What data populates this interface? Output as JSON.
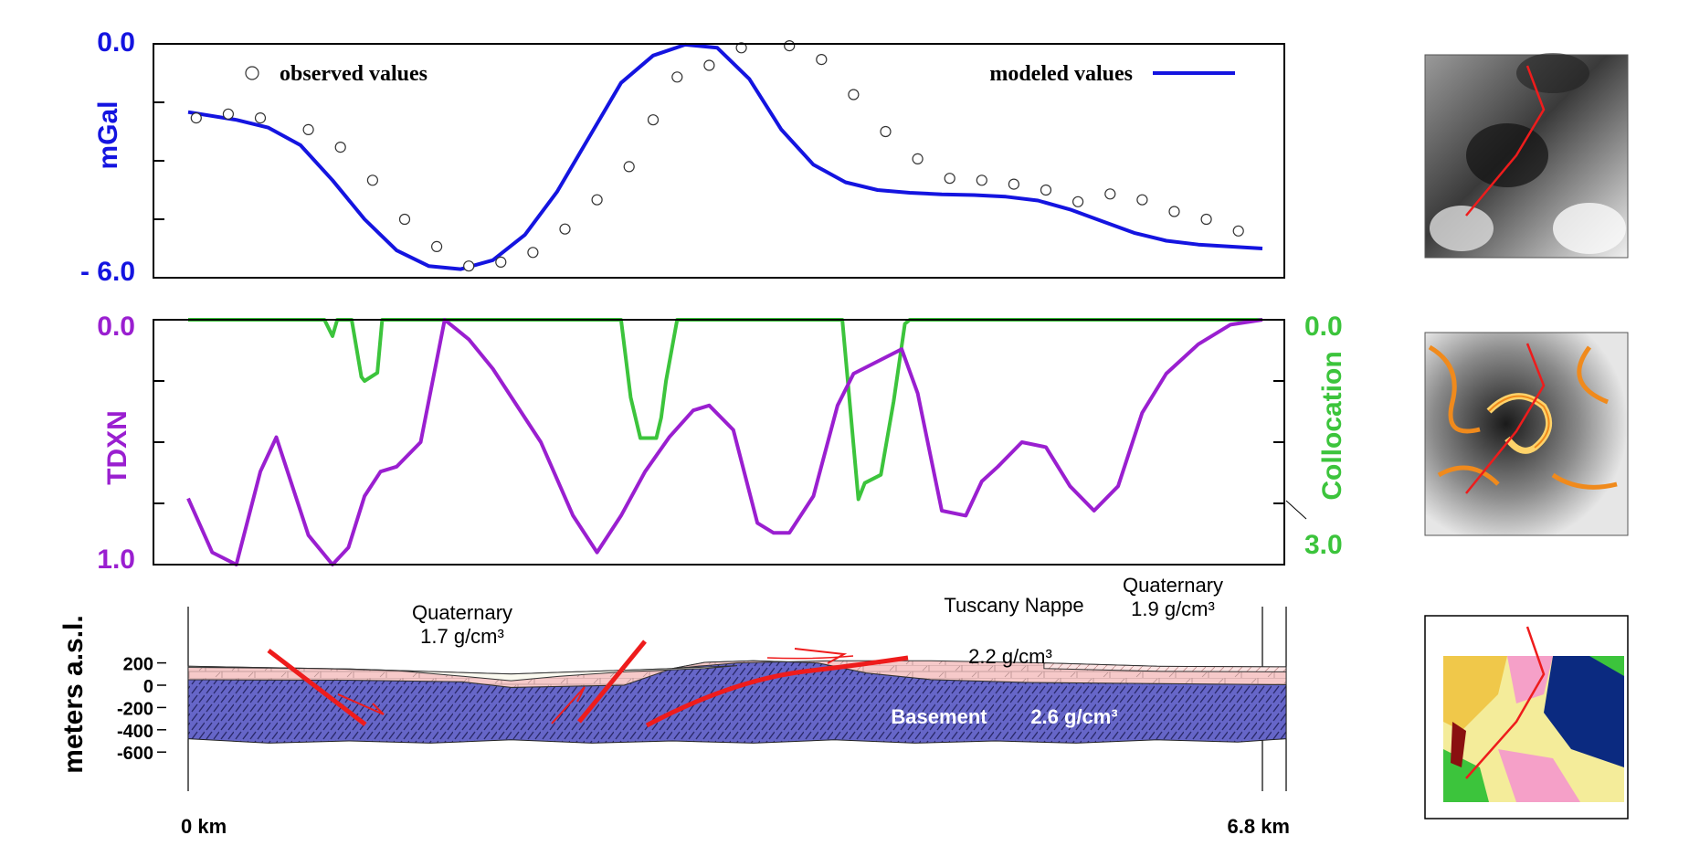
{
  "colors": {
    "gravity": "#1414e0",
    "tdxn": "#9a1fd0",
    "collocation": "#3cc43c",
    "fault": "#ee1c1c",
    "basement": "#6666c8",
    "nappe": "#f6c9c9",
    "quaternary": "#fbfaf0"
  },
  "chart_data": [
    {
      "type": "line",
      "ylabel": "mGal",
      "ylim": [
        -6.0,
        0.0
      ],
      "ytick_labels": {
        "top": "0.0",
        "bottom": "- 6.0"
      },
      "legend": {
        "observed": "observed values",
        "modeled": "modeled values"
      },
      "series": [
        {
          "name": "modeled values",
          "x": [
            0.0,
            0.3,
            0.5,
            0.7,
            0.9,
            1.1,
            1.3,
            1.5,
            1.7,
            1.9,
            2.1,
            2.3,
            2.5,
            2.7,
            2.9,
            3.1,
            3.3,
            3.5,
            3.7,
            3.9,
            4.1,
            4.3,
            4.5,
            4.7,
            4.9,
            5.1,
            5.3,
            5.5,
            5.7,
            5.9,
            6.1,
            6.3,
            6.5,
            6.7
          ],
          "y": [
            -1.75,
            -1.95,
            -2.15,
            -2.6,
            -3.5,
            -4.5,
            -5.3,
            -5.7,
            -5.78,
            -5.55,
            -4.9,
            -3.8,
            -2.4,
            -1.0,
            -0.3,
            -0.02,
            -0.1,
            -0.9,
            -2.2,
            -3.1,
            -3.55,
            -3.75,
            -3.82,
            -3.86,
            -3.88,
            -3.92,
            -4.02,
            -4.25,
            -4.55,
            -4.85,
            -5.05,
            -5.15,
            -5.2,
            -5.25
          ]
        },
        {
          "name": "observed values",
          "x": [
            0.05,
            0.25,
            0.45,
            0.75,
            0.95,
            1.15,
            1.35,
            1.55,
            1.75,
            1.95,
            2.15,
            2.35,
            2.55,
            2.75,
            2.9,
            3.05,
            3.25,
            3.45,
            3.75,
            3.95,
            4.15,
            4.35,
            4.55,
            4.75,
            4.95,
            5.15,
            5.35,
            5.55,
            5.75,
            5.95,
            6.15,
            6.35,
            6.55
          ],
          "y": [
            -1.9,
            -1.8,
            -1.9,
            -2.2,
            -2.65,
            -3.5,
            -4.5,
            -5.2,
            -5.7,
            -5.6,
            -5.35,
            -4.75,
            -4.0,
            -3.15,
            -1.95,
            -0.85,
            -0.55,
            -0.1,
            -0.05,
            -0.4,
            -1.3,
            -2.25,
            -2.95,
            -3.45,
            -3.5,
            -3.6,
            -3.75,
            -4.05,
            -3.85,
            -4.0,
            -4.3,
            -4.5,
            -4.8
          ]
        }
      ]
    },
    {
      "type": "line",
      "ylabel": "TDXN",
      "ylabel_right": "Collocation",
      "ylim": [
        1.0,
        0.0
      ],
      "ylim_right": [
        3.0,
        0.0
      ],
      "ytick_labels": {
        "top": "0.0",
        "bottom": "1.0",
        "right_top": "0.0",
        "right_bottom": "3.0"
      },
      "series": [
        {
          "name": "TDXN",
          "x": [
            0.0,
            0.15,
            0.3,
            0.45,
            0.55,
            0.75,
            0.9,
            1.0,
            1.1,
            1.2,
            1.3,
            1.45,
            1.6,
            1.75,
            1.9,
            2.0,
            2.2,
            2.4,
            2.55,
            2.7,
            2.85,
            3.0,
            3.15,
            3.25,
            3.4,
            3.55,
            3.65,
            3.75,
            3.9,
            4.05,
            4.15,
            4.3,
            4.45,
            4.55,
            4.7,
            4.85,
            4.95,
            5.05,
            5.2,
            5.35,
            5.5,
            5.65,
            5.8,
            5.95,
            6.1,
            6.3,
            6.5,
            6.7
          ],
          "y": [
            0.73,
            0.95,
            1.0,
            0.62,
            0.48,
            0.88,
            1.0,
            0.93,
            0.72,
            0.62,
            0.6,
            0.5,
            0.0,
            0.08,
            0.2,
            0.3,
            0.5,
            0.8,
            0.95,
            0.8,
            0.62,
            0.48,
            0.37,
            0.35,
            0.45,
            0.83,
            0.87,
            0.87,
            0.72,
            0.35,
            0.22,
            0.17,
            0.12,
            0.3,
            0.78,
            0.8,
            0.66,
            0.6,
            0.5,
            0.52,
            0.68,
            0.78,
            0.68,
            0.38,
            0.22,
            0.1,
            0.02,
            0.0
          ]
        },
        {
          "name": "Collocation",
          "x": [
            0.0,
            0.82,
            0.85,
            0.9,
            0.93,
            1.0,
            1.02,
            1.08,
            1.1,
            1.18,
            1.21,
            2.62,
            2.7,
            2.76,
            2.82,
            2.92,
            2.95,
            2.98,
            3.05,
            3.15,
            3.18,
            3.22,
            4.08,
            4.18,
            4.22,
            4.32,
            4.4,
            4.47,
            4.5,
            6.7
          ],
          "y": [
            0.0,
            0.0,
            0.0,
            0.2,
            0.0,
            0.0,
            0.0,
            0.7,
            0.75,
            0.65,
            0.0,
            0.0,
            0.0,
            0.95,
            1.45,
            1.45,
            1.2,
            0.75,
            0.0,
            0.0,
            0.0,
            0.0,
            0.0,
            2.2,
            2.0,
            1.9,
            1.0,
            0.05,
            0.0,
            0.0
          ]
        }
      ]
    },
    {
      "type": "area",
      "ylabel": "meters a.s.l.",
      "yticks": [
        "200",
        "0",
        "-200",
        "-400",
        "-600"
      ],
      "xtick_labels": [
        "0 km",
        "6.8 km"
      ],
      "xlim": [
        0,
        6.8
      ],
      "ylim": [
        -700,
        300
      ],
      "labels": {
        "quaternary_left": "Quaternary",
        "quaternary_left_density": "1.7 g/cm³",
        "tuscany_nappe": "Tuscany Nappe",
        "quaternary_right": "Quaternary",
        "quaternary_right_density": "1.9 g/cm³",
        "nappe_density": "2.2 g/cm³",
        "basement": "Basement",
        "basement_density": "2.6 g/cm³"
      },
      "layers": {
        "surface": {
          "x": [
            0.0,
            1.0,
            2.0,
            3.0,
            3.4,
            4.0,
            4.6,
            5.3,
            6.0,
            6.8
          ],
          "y": [
            170,
            145,
            100,
            150,
            200,
            220,
            220,
            200,
            170,
            165
          ]
        },
        "quaternary_base_left": {
          "x": [
            0.0,
            0.8,
            1.3,
            1.7,
            2.0,
            2.3,
            2.7,
            3.2,
            3.4
          ],
          "y": [
            160,
            150,
            130,
            80,
            40,
            80,
            120,
            150,
            175
          ]
        },
        "basement_top": {
          "x": [
            0.0,
            1.0,
            1.7,
            2.0,
            2.7,
            3.0,
            3.2,
            3.5,
            3.9,
            4.2,
            4.6,
            5.2,
            6.0,
            6.8
          ],
          "y": [
            50,
            45,
            30,
            -20,
            0,
            150,
            205,
            220,
            200,
            110,
            50,
            25,
            15,
            5
          ]
        },
        "basement_bottom": {
          "x": [
            0.0,
            0.5,
            1.0,
            1.5,
            2.0,
            2.5,
            3.0,
            3.5,
            4.0,
            4.5,
            5.0,
            5.5,
            6.0,
            6.5,
            6.8
          ],
          "y": [
            -480,
            -520,
            -500,
            -520,
            -490,
            -520,
            -500,
            -520,
            -490,
            -520,
            -500,
            -520,
            -490,
            -510,
            -480
          ]
        }
      }
    }
  ],
  "maps": [
    {
      "name": "gravity-map"
    },
    {
      "name": "tdxn-map"
    },
    {
      "name": "geologic-map"
    }
  ]
}
